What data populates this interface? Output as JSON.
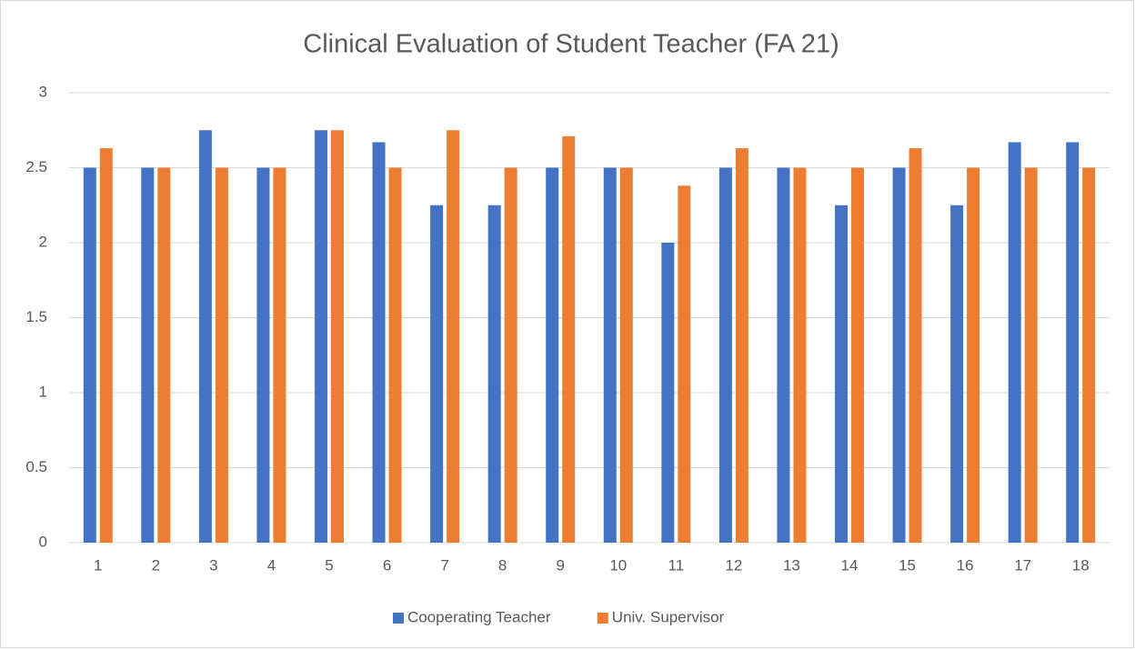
{
  "chart_data": {
    "type": "bar",
    "title": "Clinical Evaluation of Student Teacher (FA 21)",
    "categories": [
      "1",
      "2",
      "3",
      "4",
      "5",
      "6",
      "7",
      "8",
      "9",
      "10",
      "11",
      "12",
      "13",
      "14",
      "15",
      "16",
      "17",
      "18"
    ],
    "series": [
      {
        "name": "Cooperating Teacher",
        "color": "#4472c4",
        "values": [
          2.5,
          2.5,
          2.75,
          2.5,
          2.75,
          2.67,
          2.25,
          2.25,
          2.5,
          2.5,
          2,
          2.5,
          2.5,
          2.25,
          2.5,
          2.25,
          2.67,
          2.67
        ]
      },
      {
        "name": "Univ. Supervisor",
        "color": "#ed7d31",
        "values": [
          2.63,
          2.5,
          2.5,
          2.5,
          2.75,
          2.5,
          2.75,
          2.5,
          2.71,
          2.5,
          2.38,
          2.63,
          2.5,
          2.5,
          2.63,
          2.5,
          2.5,
          2.5
        ]
      }
    ],
    "ylim": [
      0,
      3
    ],
    "yticks": [
      0,
      0.5,
      1,
      1.5,
      2,
      2.5,
      3
    ],
    "grid": true,
    "legend": "bottom"
  }
}
